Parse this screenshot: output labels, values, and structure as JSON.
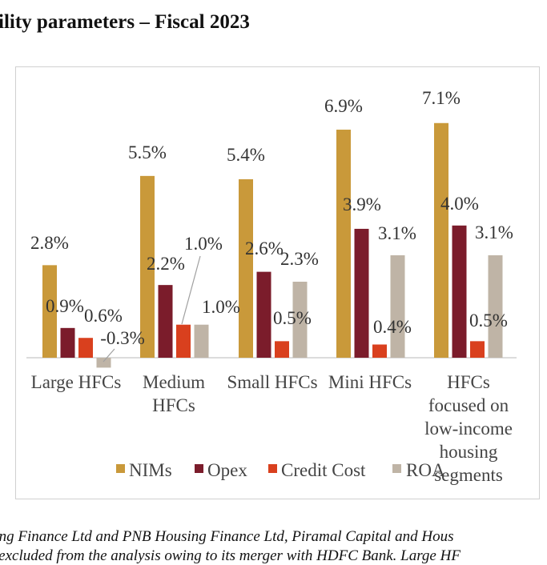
{
  "title": "ility parameters – Fiscal 2023",
  "footnotes": [
    "sing Finance Ltd and PNB Housing Finance Ltd, Piramal Capital and Hous",
    "s excluded from the analysis owing to its merger with HDFC Bank. Large HF"
  ],
  "chart_data": {
    "type": "bar",
    "categories": [
      "Large HFCs",
      "Medium HFCs",
      "Small HFCs",
      "Mini HFCs",
      "HFCs focused on low-income housing segments"
    ],
    "category_label_lines": [
      [
        "Large HFCs"
      ],
      [
        "Medium",
        "HFCs"
      ],
      [
        "Small HFCs"
      ],
      [
        "Mini HFCs"
      ],
      [
        "HFCs",
        "focused on",
        "low-income",
        "housing",
        "segments"
      ]
    ],
    "series": [
      {
        "name": "NIMs",
        "color": "#C9993A",
        "values": [
          2.8,
          5.5,
          5.4,
          6.9,
          7.1
        ],
        "labels": [
          "2.8%",
          "5.5%",
          "5.4%",
          "6.9%",
          "7.1%"
        ]
      },
      {
        "name": "Opex",
        "color": "#7B1C2B",
        "values": [
          0.9,
          2.2,
          2.6,
          3.9,
          4.0
        ],
        "labels": [
          "0.9%",
          "2.2%",
          "2.6%",
          "3.9%",
          "4.0%"
        ]
      },
      {
        "name": "Credit Cost",
        "color": "#D9401E",
        "values": [
          0.6,
          1.0,
          0.5,
          0.4,
          0.5
        ],
        "labels": [
          "0.6%",
          "1.0%",
          "0.5%",
          "0.4%",
          "0.5%"
        ]
      },
      {
        "name": "ROA",
        "color": "#BFB4A6",
        "values": [
          -0.3,
          1.0,
          2.3,
          3.1,
          3.1
        ],
        "labels": [
          "-0.3%",
          "1.0%",
          "2.3%",
          "3.1%",
          "3.1%"
        ]
      }
    ],
    "unit": "%",
    "ylim": [
      -0.5,
      8
    ],
    "legend_position": "bottom",
    "grid": false
  }
}
